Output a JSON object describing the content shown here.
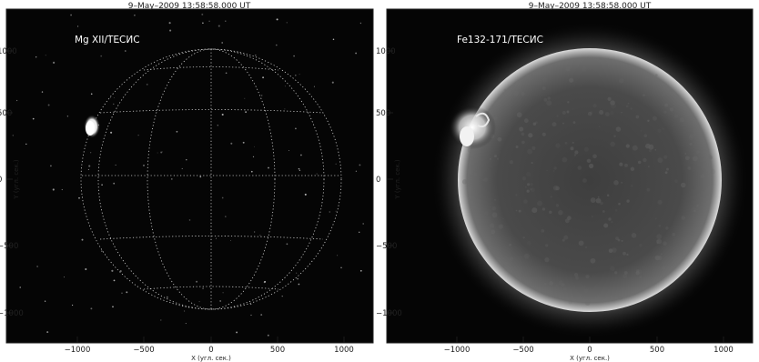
{
  "panels": [
    {
      "timestamp": "9–May–2009  13:58:58.000  UT",
      "label": "Mg XII/ТЕСИС",
      "xlabel": "X (угл. сек.)",
      "ylabel": "Y (угл. сек.)",
      "xticks": [
        "−1000",
        "−500",
        "0",
        "500",
        "1000"
      ],
      "yticks": [
        "1000",
        "500",
        "0",
        "−500",
        "−1000"
      ],
      "grid": true
    },
    {
      "timestamp": "9–May–2009  13:58:58.000  UT",
      "label": "Fe132-171/ТЕСИС",
      "xlabel": "X (угл. сек.)",
      "ylabel": "Y (угл. сек.)",
      "xticks": [
        "−1000",
        "−500",
        "0",
        "500",
        "1000"
      ],
      "yticks": [
        "1000",
        "500",
        "0",
        "−500",
        "−1000"
      ],
      "grid": false
    }
  ]
}
